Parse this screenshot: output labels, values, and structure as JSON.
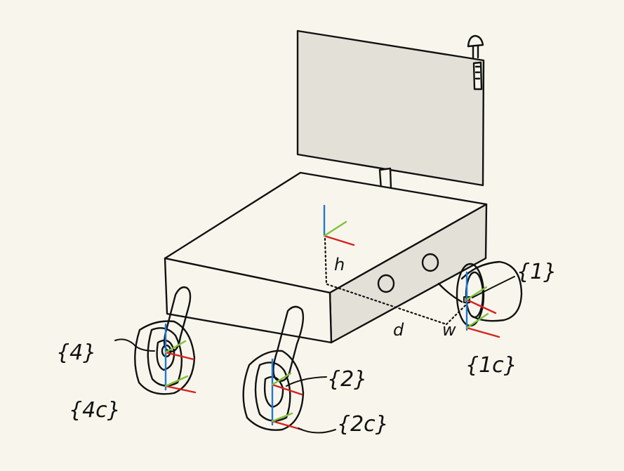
{
  "colors": {
    "background": "#f8f6ec",
    "stroke": "#111111",
    "face_fill": "#e3e1d7",
    "top_fill": "#f8f6ec",
    "axis_z": "#1e78d6",
    "axis_x": "#d62020",
    "axis_y": "#7ec23a"
  },
  "labels": {
    "frame_1": "{1}",
    "frame_1c": "{1c}",
    "frame_2": "{2}",
    "frame_2c": "{2c}",
    "frame_4": "{4}",
    "frame_4c": "{4c}",
    "height": "h",
    "depth": "d",
    "width": "w"
  }
}
